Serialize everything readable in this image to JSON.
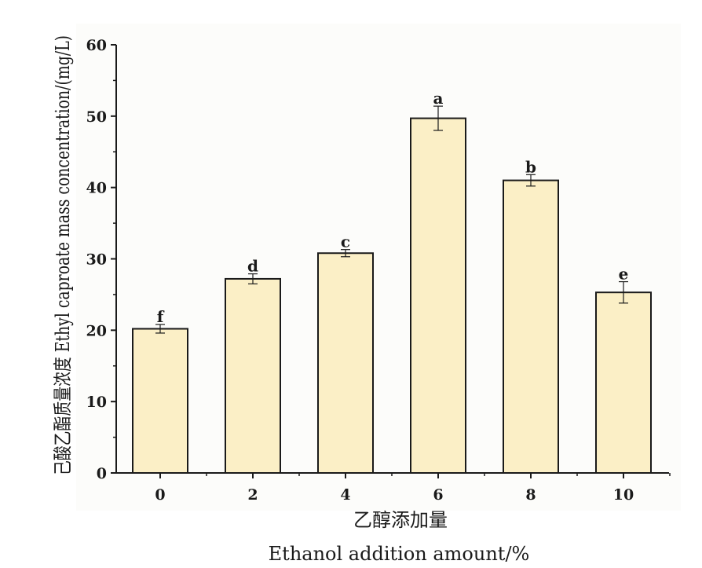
{
  "chart_data": {
    "type": "bar",
    "categories": [
      "0",
      "2",
      "4",
      "6",
      "8",
      "10"
    ],
    "values": [
      20.2,
      27.2,
      30.8,
      49.7,
      41.0,
      25.3
    ],
    "errors": [
      0.6,
      0.7,
      0.5,
      1.7,
      0.8,
      1.5
    ],
    "significance_labels": [
      "f",
      "d",
      "c",
      "a",
      "b",
      "e"
    ],
    "ylim": [
      0,
      60
    ],
    "yticks": [
      0,
      10,
      20,
      30,
      40,
      50,
      60
    ],
    "xlabel_cn": "乙醇添加量",
    "xlabel_en": "Ethanol addition amount/%",
    "ylabel": "己酸乙酯质量浓度 Ethyl caproate mass concentration/(mg/L)",
    "bar_color": "#fbefc6",
    "bar_edge_color": "#1a1a1a",
    "grid": false,
    "legend": "none"
  }
}
